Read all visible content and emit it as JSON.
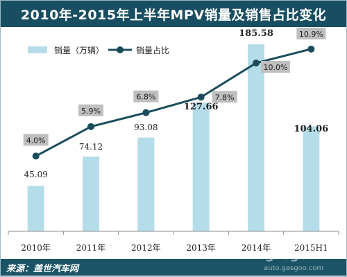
{
  "title": "2010年-2015年上半年MPV销量及销售占比变化",
  "footer": {
    "source": "来源：盖世汽车网"
  },
  "watermark": {
    "logo_text": "gasgoo",
    "url": "auto.gasgoo.com",
    "cn": "盖世汽车网"
  },
  "colors": {
    "bar": "#b5dde9",
    "line": "#1a4c5c",
    "label_box": "#bfbfbf",
    "header": "#184e61"
  },
  "chart_data": {
    "type": "bar",
    "categories": [
      "2010年",
      "2011年",
      "2012年",
      "2013年",
      "2014年",
      "2015H1"
    ],
    "series": [
      {
        "name": "销量（万辆）",
        "type": "bar",
        "values": [
          45.09,
          74.12,
          93.08,
          127.66,
          185.58,
          104.06
        ]
      },
      {
        "name": "销量占比",
        "type": "line",
        "values": [
          4.0,
          5.9,
          6.8,
          7.8,
          10.0,
          10.9
        ],
        "labels": [
          "4.0%",
          "5.9%",
          "6.8%",
          "7.8%",
          "10.0%",
          "10.9%"
        ]
      }
    ],
    "bar_labels": [
      "45.09",
      "74.12",
      "93.08",
      "127.66",
      "185.58",
      "104.06"
    ],
    "legend_placement": "top-left",
    "grid": false
  }
}
